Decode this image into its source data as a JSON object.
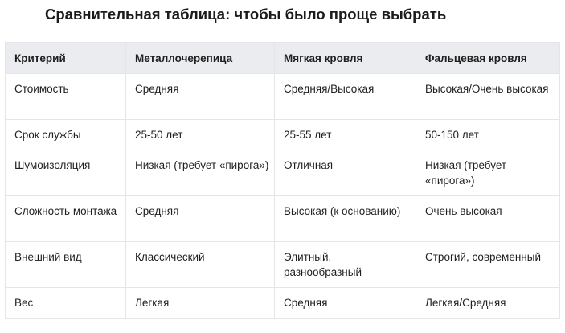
{
  "title": "Сравнительная таблица: чтобы было проще выбрать",
  "table": {
    "headers": [
      "Критерий",
      "Металлочерепица",
      "Мягкая кровля",
      "Фальцевая кровля"
    ],
    "rows": [
      [
        "Стоимость",
        "Средняя",
        "Средняя/Высокая",
        "Высокая/Очень высокая"
      ],
      [
        "Срок службы",
        "25-50 лет",
        "25-55 лет",
        "50-150 лет"
      ],
      [
        "Шумоизоляция",
        "Низкая (требует «пирога»)",
        "Отличная",
        "Низкая (требует «пирога»)"
      ],
      [
        "Сложность монтажа",
        "Средняя",
        "Высокая (к основанию)",
        "Очень высокая"
      ],
      [
        "Внешний вид",
        "Классический",
        "Элитный, разнообразный",
        "Строгий, современный"
      ],
      [
        "Вес",
        "Легкая",
        "Средняя",
        "Легкая/Средняя"
      ]
    ]
  }
}
